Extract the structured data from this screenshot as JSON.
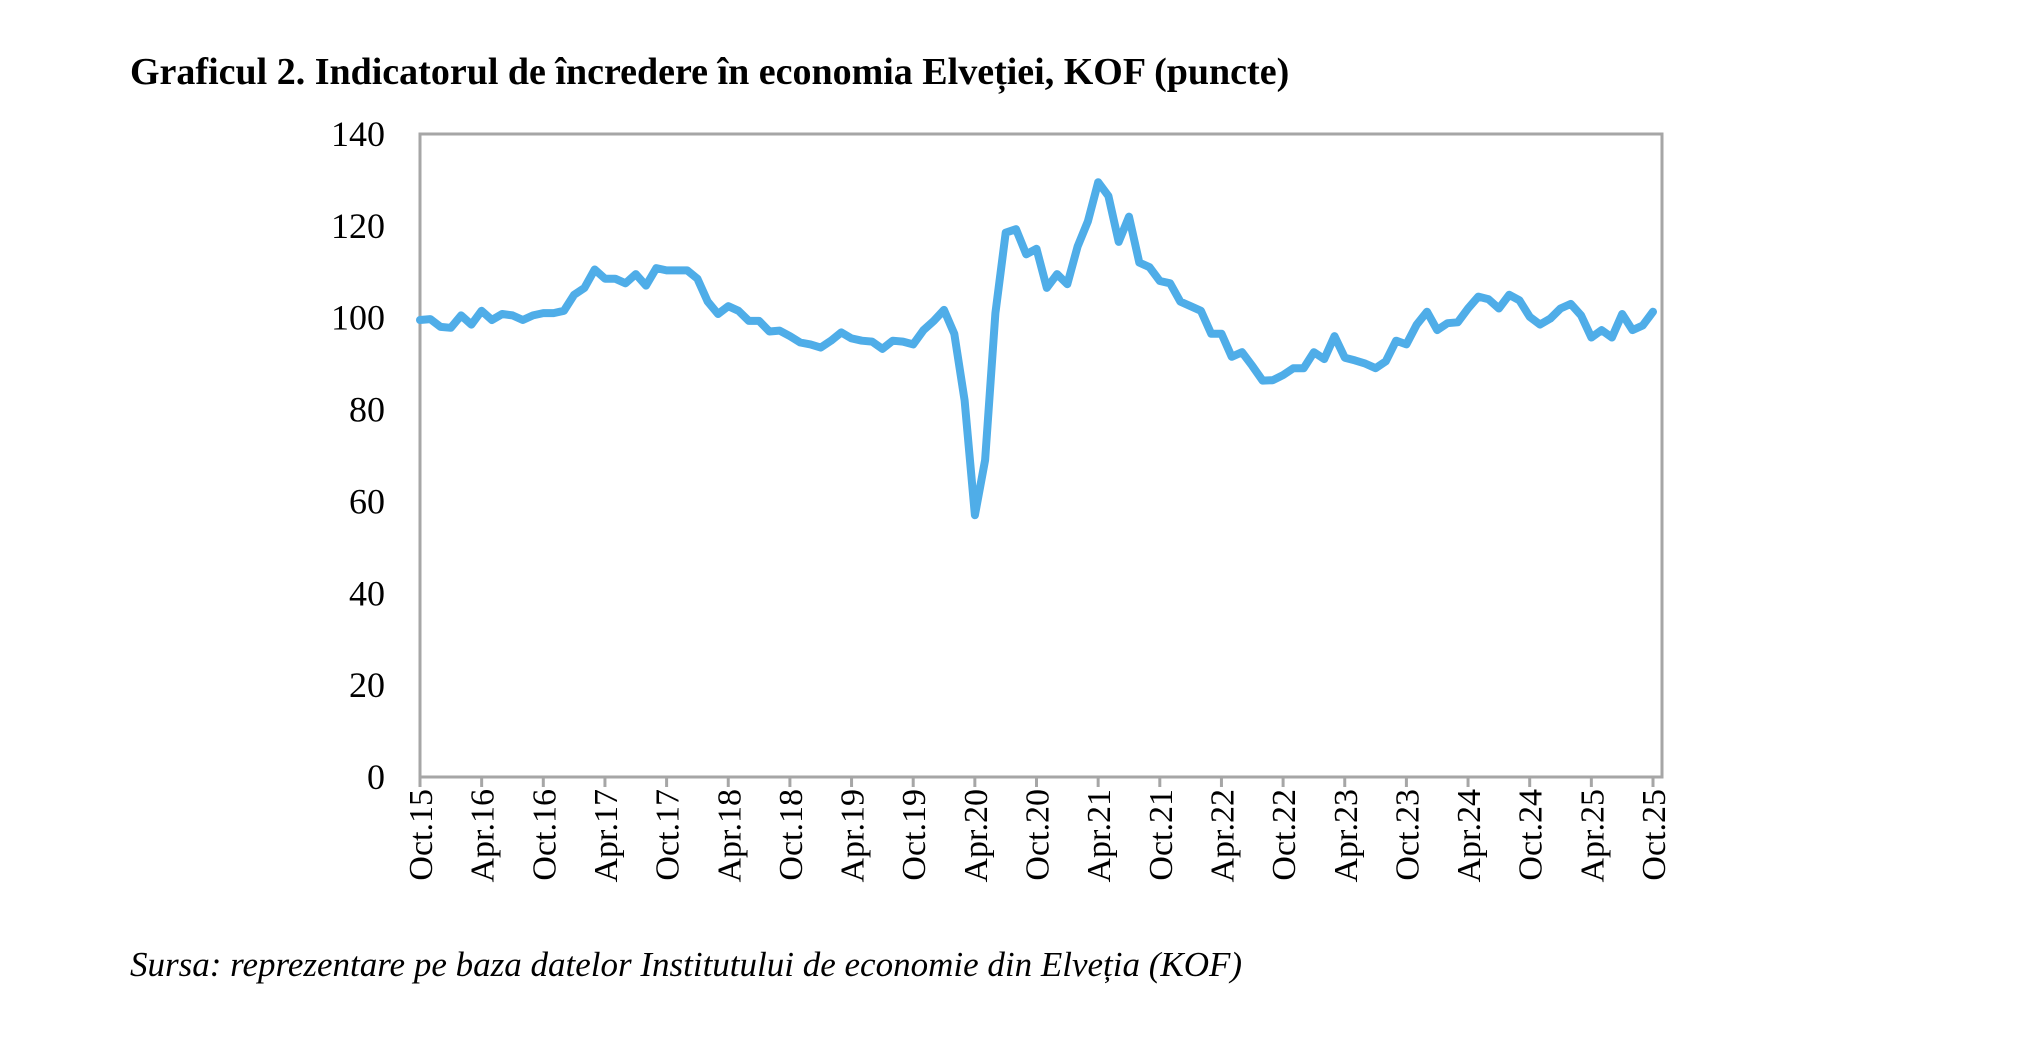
{
  "chart_data": {
    "type": "line",
    "title": "Graficul 2. Indicatorul de încredere în economia Elveției, KOF (puncte)",
    "source": "Sursa: reprezentare pe baza datelor Institutului de economie din Elveția (KOF)",
    "xlabel": "",
    "ylabel": "",
    "ylim": [
      0,
      140
    ],
    "y_ticks": [
      "0",
      "20",
      "40",
      "60",
      "80",
      "100",
      "120",
      "140"
    ],
    "x_ticks": [
      "Oct.15",
      "Apr.16",
      "Oct.16",
      "Apr.17",
      "Oct.17",
      "Apr.18",
      "Oct.18",
      "Apr.19",
      "Oct.19",
      "Apr.20",
      "Oct.20",
      "Apr.21",
      "Oct.21",
      "Apr.22",
      "Oct.22",
      "Apr.23",
      "Oct.23",
      "Apr.24",
      "Oct.24",
      "Apr.25",
      "Oct.25"
    ],
    "x_start": "Oct.15",
    "frequency": "monthly",
    "grid": false,
    "legend": "none",
    "series": [
      {
        "name": "KOF",
        "color": "#4FADE8",
        "values": [
          99.5,
          99.7,
          98,
          97.8,
          100.5,
          98.5,
          101.5,
          99.5,
          100.8,
          100.5,
          99.5,
          100.5,
          101,
          101,
          101.5,
          105,
          106.5,
          110.5,
          108.5,
          108.5,
          107.5,
          109.5,
          107,
          110.8,
          110.3,
          110.3,
          110.3,
          108.5,
          103.5,
          100.8,
          102.5,
          101.5,
          99.3,
          99.3,
          97,
          97.2,
          96,
          94.6,
          94.2,
          93.5,
          95,
          96.8,
          95.5,
          95,
          94.8,
          93.2,
          95,
          94.8,
          94.2,
          97.3,
          99.3,
          101.7,
          96.5,
          82,
          57,
          69,
          101,
          118.5,
          119.3,
          113.8,
          115,
          106.5,
          109.5,
          107.3,
          115.5,
          121,
          129.5,
          126.5,
          116.5,
          122,
          112,
          111,
          108,
          107.5,
          103.5,
          102.5,
          101.5,
          96.5,
          96.5,
          91.5,
          92.5,
          89.5,
          86.3,
          86.4,
          87.5,
          89,
          89,
          92.5,
          91,
          96,
          91.3,
          90.7,
          90,
          89,
          90.5,
          95,
          94.2,
          98.5,
          101.3,
          97.3,
          98.8,
          99,
          102,
          104.6,
          104,
          102,
          105,
          103.8,
          100.2,
          98.5,
          99.8,
          102,
          103,
          100.5,
          95.7,
          97.3,
          95.7,
          100.8,
          97.3,
          98.3,
          101.3
        ]
      }
    ]
  }
}
